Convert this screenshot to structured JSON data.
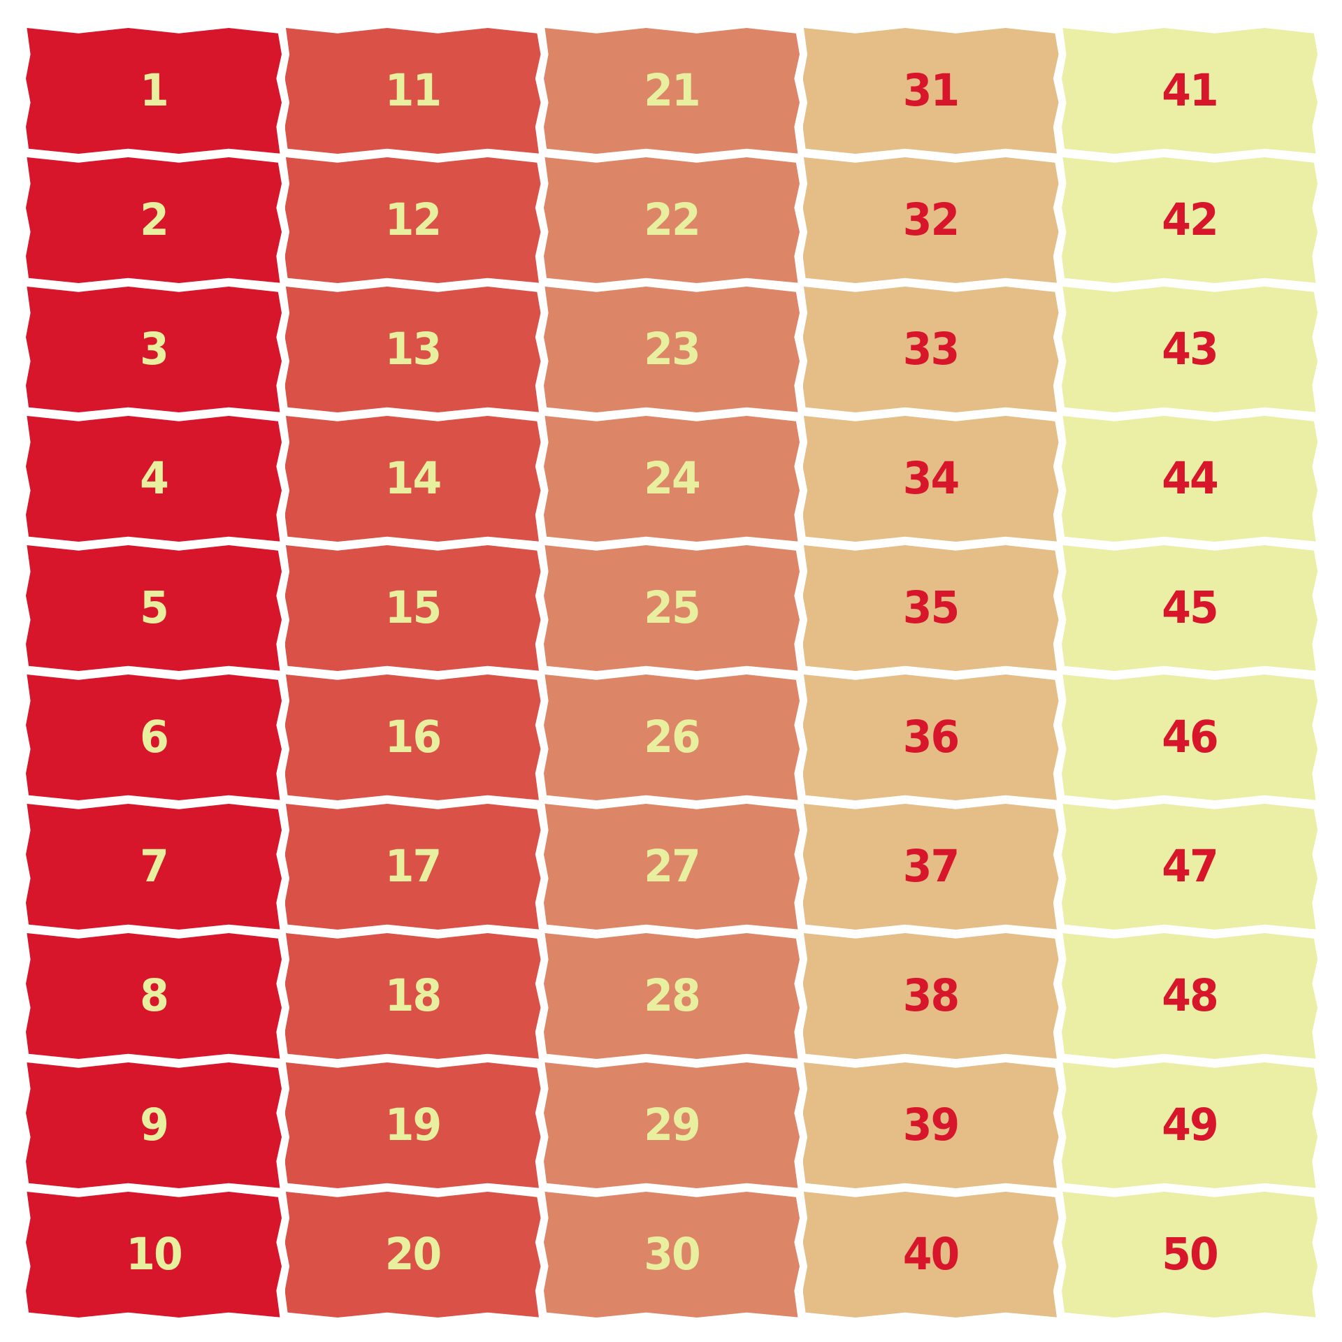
{
  "columns": [
    {
      "fill": "#d8162b",
      "text_color": "#e8ef9f",
      "numbers": [
        "1",
        "2",
        "3",
        "4",
        "5",
        "6",
        "7",
        "8",
        "9",
        "10"
      ]
    },
    {
      "fill": "#da5247",
      "text_color": "#e8ef9f",
      "numbers": [
        "11",
        "12",
        "13",
        "14",
        "15",
        "16",
        "17",
        "18",
        "19",
        "20"
      ]
    },
    {
      "fill": "#dd8667",
      "text_color": "#e8ef9f",
      "numbers": [
        "21",
        "22",
        "23",
        "24",
        "25",
        "26",
        "27",
        "28",
        "29",
        "30"
      ]
    },
    {
      "fill": "#e4bd87",
      "text_color": "#d8162b",
      "numbers": [
        "31",
        "32",
        "33",
        "34",
        "35",
        "36",
        "37",
        "38",
        "39",
        "40"
      ]
    },
    {
      "fill": "#ebeea5",
      "text_color": "#d8162b",
      "numbers": [
        "41",
        "42",
        "43",
        "44",
        "45",
        "46",
        "47",
        "48",
        "49",
        "50"
      ]
    }
  ]
}
